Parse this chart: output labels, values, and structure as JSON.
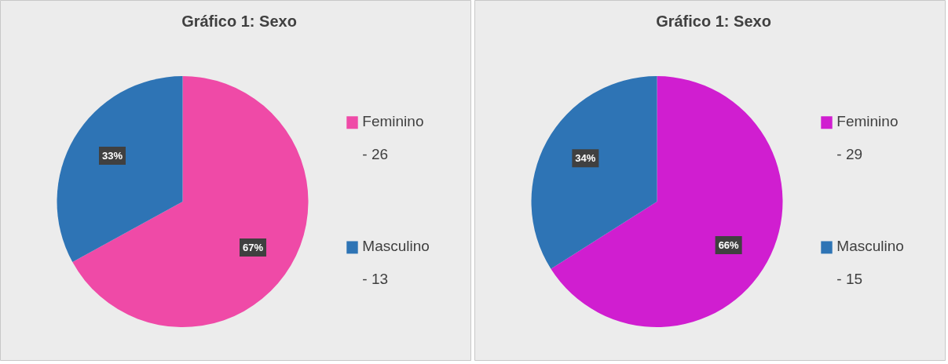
{
  "chart_data": [
    {
      "type": "pie",
      "title": "Gráfico 1: Sexo",
      "categories": [
        "Feminino\n- 26",
        "Masculino\n- 13"
      ],
      "values": [
        67,
        33
      ],
      "colors": [
        "#ef4aa7",
        "#2e74b5"
      ],
      "value_labels": [
        "67%",
        "33%"
      ],
      "legend": "right"
    },
    {
      "type": "pie",
      "title": "Gráfico 1: Sexo",
      "categories": [
        "Feminino\n- 29",
        "Masculino\n- 15"
      ],
      "values": [
        66,
        34
      ],
      "colors": [
        "#d01ed0",
        "#2e74b5"
      ],
      "value_labels": [
        "66%",
        "34%"
      ],
      "legend": "right"
    }
  ]
}
